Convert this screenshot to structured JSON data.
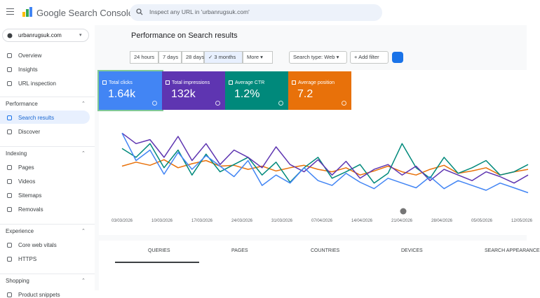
{
  "header": {
    "product": "Google Search Console",
    "search_placeholder": "Inspect any URL in 'urbanrugsuk.com'"
  },
  "sidebar": {
    "property": "urbanrugsuk.com",
    "top_items": [
      "Overview",
      "Insights",
      "URL inspection"
    ],
    "sections": [
      {
        "title": "Performance",
        "items": [
          "Search results",
          "Discover"
        ]
      },
      {
        "title": "Indexing",
        "items": [
          "Pages",
          "Videos",
          "Sitemaps",
          "Removals"
        ]
      },
      {
        "title": "Experience",
        "items": [
          "Core web vitals",
          "HTTPS"
        ]
      },
      {
        "title": "Shopping",
        "items": [
          "Product snippets"
        ]
      }
    ]
  },
  "main": {
    "title": "Performance on Search results",
    "date_filters": [
      "24 hours",
      "7 days",
      "28 days",
      "3 months",
      "More"
    ],
    "selected_filter": 3,
    "search_type": "Search type: Web",
    "add_filter": "Add filter",
    "tabs": [
      "QUERIES",
      "PAGES",
      "COUNTRIES",
      "DEVICES",
      "SEARCH APPEARANCE"
    ],
    "selected_tab": 0
  },
  "chart_data": {
    "type": "line",
    "x_labels": [
      "03/03/2026",
      "10/03/2026",
      "17/03/2026",
      "24/03/2026",
      "31/03/2026",
      "07/04/2026",
      "14/04/2026",
      "21/04/2026",
      "28/04/2026",
      "05/05/2026",
      "12/05/2026"
    ],
    "ylim": [
      0,
      100
    ],
    "series": [
      {
        "name": "Total clicks",
        "total": "1.64k",
        "color": "#4285f4",
        "values": [
          91,
          57,
          70,
          40,
          67,
          46,
          63,
          50,
          37,
          57,
          26,
          39,
          29,
          48,
          32,
          26,
          41,
          30,
          22,
          35,
          29,
          23,
          37,
          22,
          32,
          26,
          20,
          29,
          23,
          17
        ]
      },
      {
        "name": "Total impressions",
        "total": "132k",
        "color": "#5e35b1",
        "values": [
          91,
          78,
          83,
          61,
          87,
          57,
          78,
          52,
          70,
          61,
          48,
          74,
          52,
          43,
          58,
          39,
          56,
          35,
          46,
          52,
          39,
          50,
          32,
          46,
          39,
          32,
          43,
          37,
          29,
          39
        ]
      },
      {
        "name": "Average CTR",
        "total": "1.2%",
        "color": "#00897b",
        "values": [
          72,
          61,
          78,
          48,
          70,
          39,
          65,
          43,
          52,
          61,
          39,
          55,
          30,
          48,
          61,
          35,
          43,
          52,
          29,
          41,
          78,
          48,
          35,
          61,
          41,
          48,
          57,
          39,
          43,
          52
        ]
      },
      {
        "name": "Average position",
        "total": "7.2",
        "color": "#e8710a",
        "values": [
          50,
          55,
          51,
          58,
          48,
          53,
          57,
          50,
          51,
          46,
          50,
          44,
          48,
          51,
          46,
          43,
          48,
          39,
          44,
          50,
          43,
          39,
          46,
          51,
          41,
          44,
          48,
          39,
          43,
          46
        ]
      }
    ]
  }
}
